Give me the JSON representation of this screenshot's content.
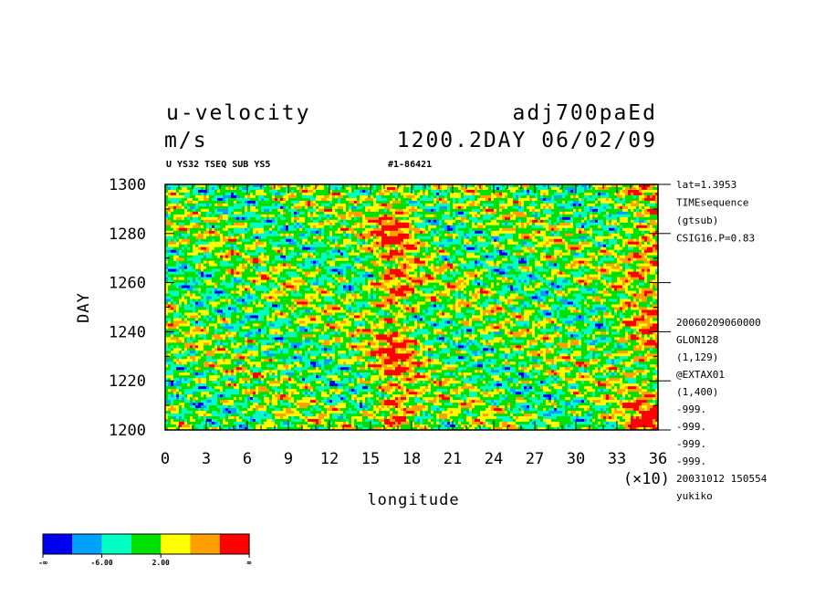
{
  "header": {
    "variable": "u-velocity",
    "units": "m/s",
    "experiment": "adj700paEd",
    "time_label": "1200.2DAY 06/02/09",
    "sub_left": "U YS32 TSEQ SUB YS5",
    "sub_right": "#1-86421"
  },
  "side_info": {
    "top": [
      "lat=1.3953",
      "TIMEsequence",
      "(gtsub)",
      "CSIG16.P=0.83"
    ],
    "bottom": [
      "20060209060000",
      "GLON128",
      "(1,129)",
      "@EXTAX01",
      "(1,400)",
      "-999.",
      "-999.",
      "-999.",
      "-999.",
      "20031012 150554",
      "yukiko"
    ]
  },
  "colorbar": {
    "colors": [
      "#0000ee",
      "#00a0ff",
      "#00ffc0",
      "#00e000",
      "#ffff00",
      "#ffa000",
      "#ff0000"
    ],
    "labels": [
      "-∞",
      "-6.00",
      "2.00",
      "∞"
    ]
  },
  "chart_data": {
    "type": "heatmap",
    "xlabel": "longitude",
    "ylabel": "DAY",
    "x_multiplier_label": "(×10)",
    "xlim": [
      0,
      36
    ],
    "ylim": [
      1200,
      1300
    ],
    "x_ticks": [
      "0",
      "3",
      "6",
      "9",
      "12",
      "15",
      "18",
      "21",
      "24",
      "27",
      "30",
      "33",
      "36"
    ],
    "y_ticks": [
      "1200",
      "1220",
      "1240",
      "1260",
      "1280",
      "1300"
    ],
    "contour_levels": [
      -6.0,
      -2.0,
      2.0
    ],
    "description_levels": "shaded u-velocity; strong positive (red/orange) bands near longitude 15-19 and 33-36; negative (blue) streaks tilted across the domain"
  }
}
